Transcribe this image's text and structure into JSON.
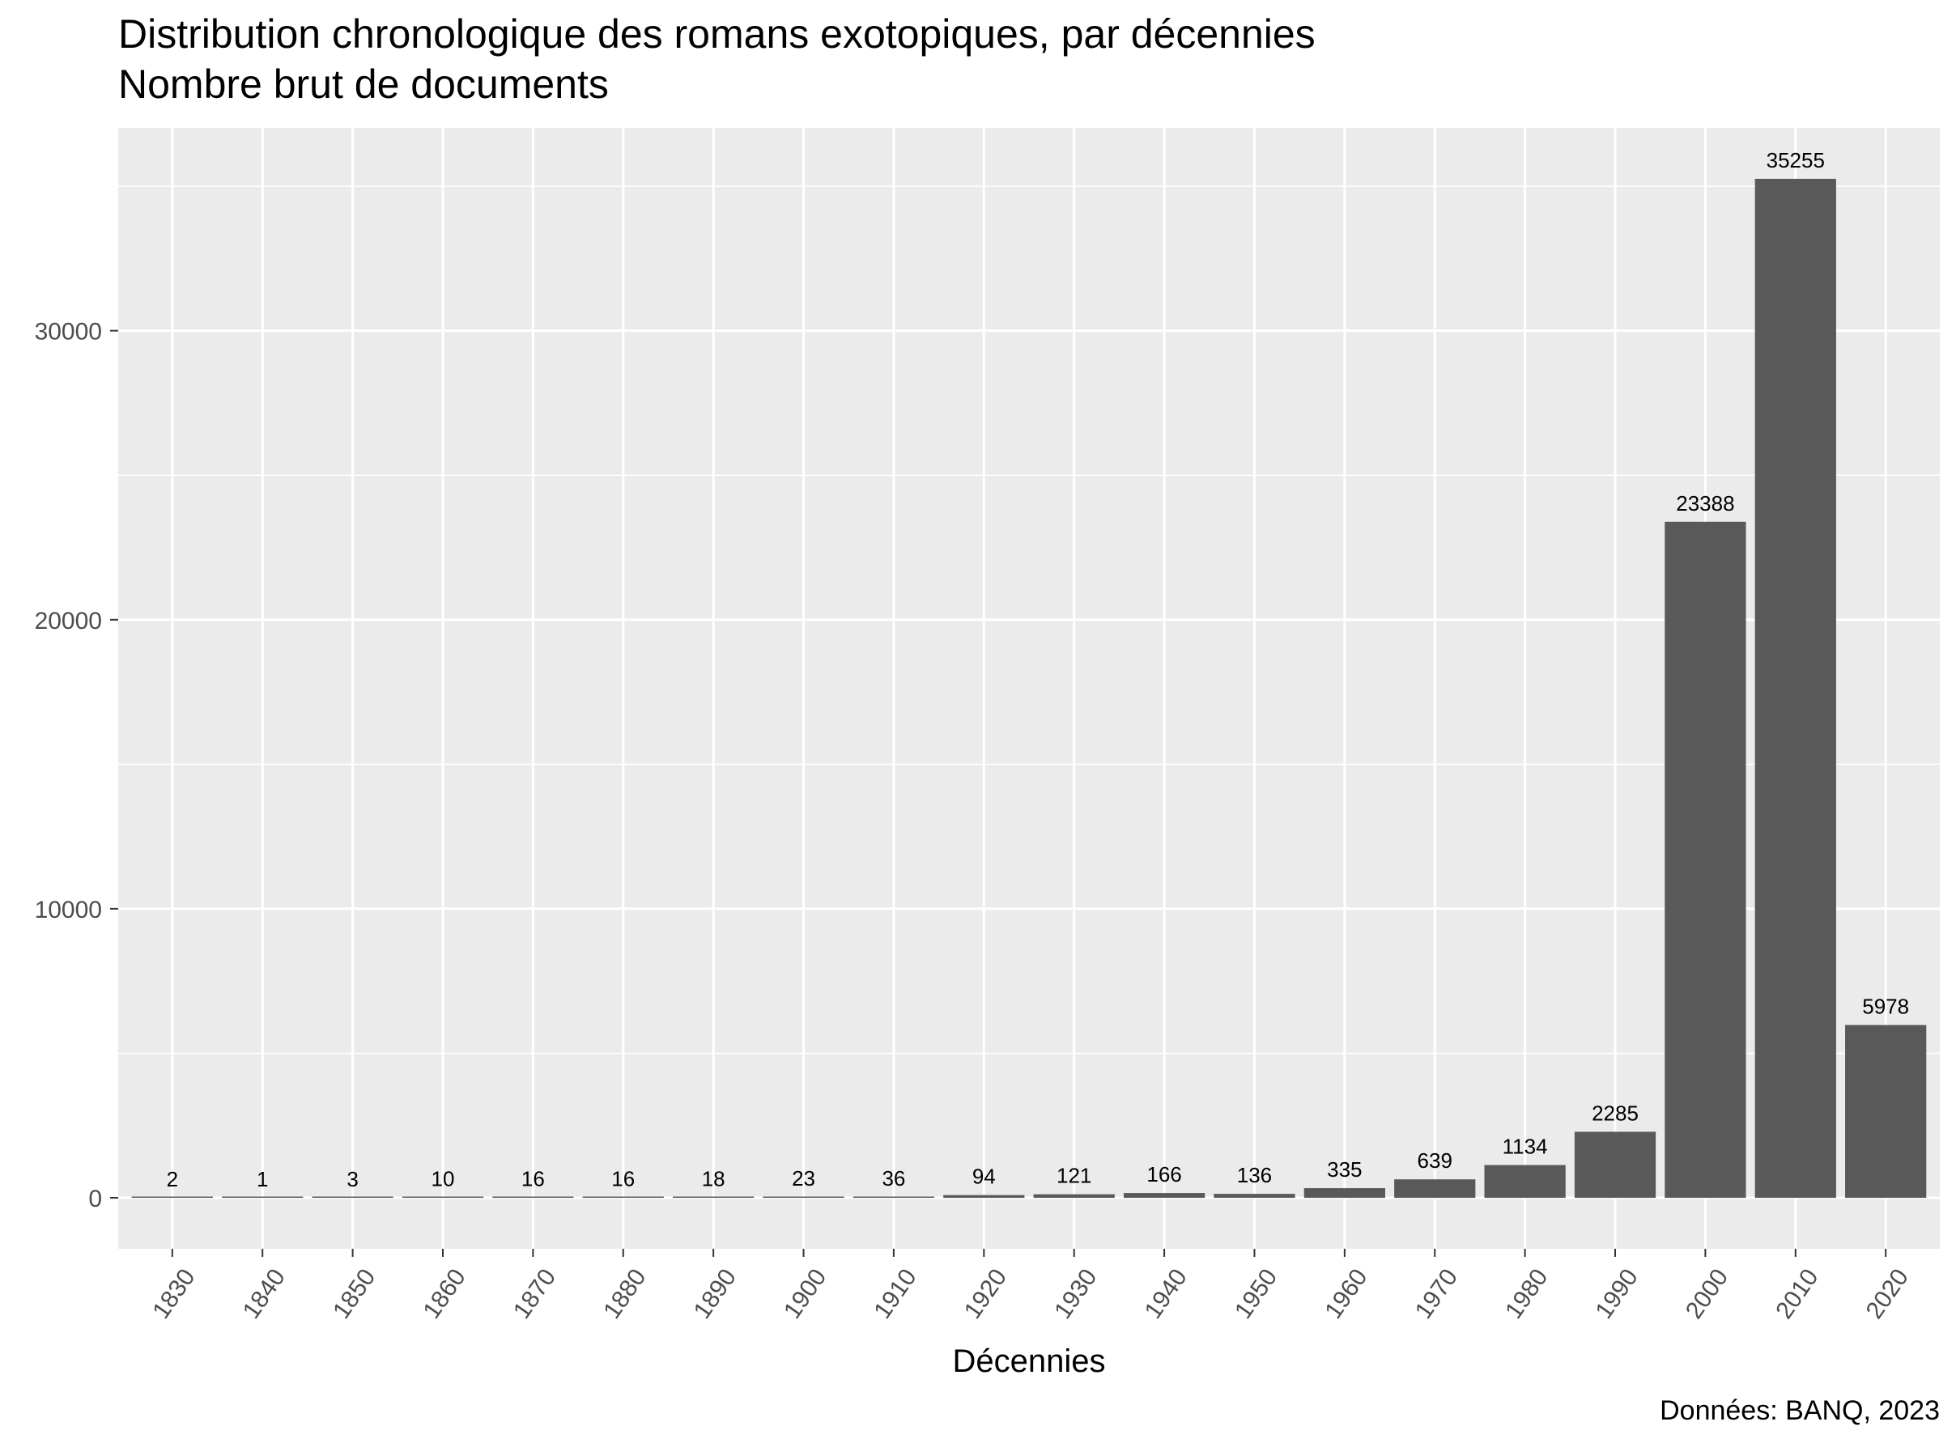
{
  "chart_data": {
    "type": "bar",
    "title": "Distribution chronologique des romans exotopiques, par décennies",
    "subtitle": "Nombre brut de documents",
    "xlabel": "Décennies",
    "ylabel": "",
    "caption": "Données: BANQ, 2023",
    "categories": [
      "1830",
      "1840",
      "1850",
      "1860",
      "1870",
      "1880",
      "1890",
      "1900",
      "1910",
      "1920",
      "1930",
      "1940",
      "1950",
      "1960",
      "1970",
      "1980",
      "1990",
      "2000",
      "2010",
      "2020"
    ],
    "values": [
      2,
      1,
      3,
      10,
      16,
      16,
      18,
      23,
      36,
      94,
      121,
      166,
      136,
      335,
      639,
      1134,
      2285,
      23388,
      35255,
      5978
    ],
    "data_labels": [
      "2",
      "1",
      "3",
      "10",
      "16",
      "16",
      "18",
      "23",
      "36",
      "94",
      "121",
      "166",
      "136",
      "335",
      "639",
      "1134",
      "2285",
      "23388",
      "35255",
      "5978"
    ],
    "yticks": [
      0,
      10000,
      20000,
      30000
    ],
    "ytick_labels": [
      "0",
      "10000",
      "20000",
      "30000"
    ],
    "ylim": [
      -1763,
      37018
    ],
    "grid": true,
    "bar_color": "#595959",
    "panel_color": "#ebebeb",
    "grid_color": "#ffffff"
  }
}
